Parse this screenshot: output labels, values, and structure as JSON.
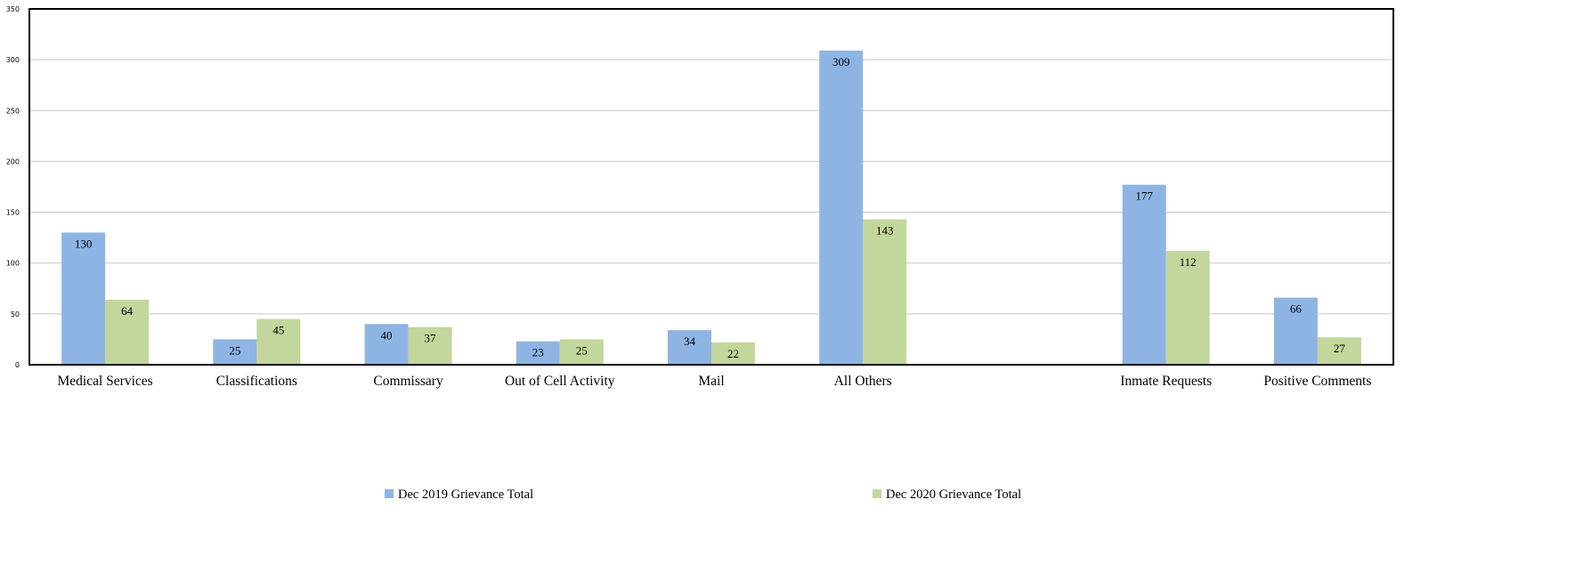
{
  "chart_data": {
    "type": "bar",
    "title": "",
    "xlabel": "",
    "ylabel": "",
    "ylim": [
      0,
      350
    ],
    "yticks": [
      0,
      50,
      100,
      150,
      200,
      250,
      300,
      350
    ],
    "grid": true,
    "legend_position": "bottom",
    "categories": [
      "Medical Services",
      "Classifications",
      "Commissary",
      "Out of Cell Activity",
      "Mail",
      "All Others",
      "",
      "Inmate Requests",
      "Positive Comments"
    ],
    "series": [
      {
        "name": "Dec 2019 Grievance Total",
        "color": "#8EB4E3",
        "values": [
          130,
          25,
          40,
          23,
          34,
          309,
          null,
          177,
          66
        ]
      },
      {
        "name": "Dec 2020 Grievance Total",
        "color": "#C3D69B",
        "values": [
          64,
          45,
          37,
          25,
          22,
          143,
          null,
          112,
          27
        ]
      }
    ]
  }
}
